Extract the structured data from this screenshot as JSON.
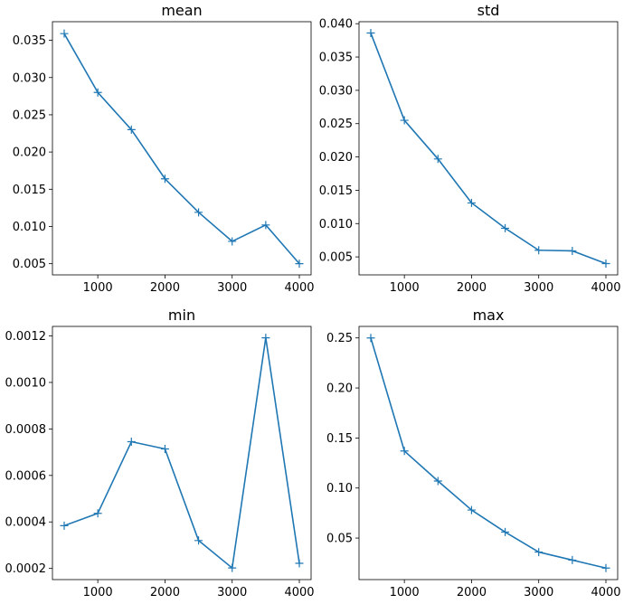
{
  "chart_data": [
    {
      "type": "line",
      "title": "mean",
      "xlabel": "",
      "ylabel": "",
      "marker": "+",
      "color": "#1f77b4",
      "x": [
        500,
        1000,
        1500,
        2000,
        2500,
        3000,
        3500,
        4000
      ],
      "y": [
        0.0359,
        0.028,
        0.023,
        0.0164,
        0.0119,
        0.008,
        0.0102,
        0.005
      ],
      "xlim": [
        325,
        4175
      ],
      "ylim": [
        0.0035,
        0.0375
      ],
      "xticks": [
        1000,
        2000,
        3000,
        4000
      ],
      "xtick_labels": [
        "1000",
        "2000",
        "3000",
        "4000"
      ],
      "yticks": [
        0.005,
        0.01,
        0.015,
        0.02,
        0.025,
        0.03,
        0.035
      ],
      "ytick_labels": [
        "0.005",
        "0.010",
        "0.015",
        "0.020",
        "0.025",
        "0.030",
        "0.035"
      ]
    },
    {
      "type": "line",
      "title": "std",
      "xlabel": "",
      "ylabel": "",
      "marker": "+",
      "color": "#1f77b4",
      "x": [
        500,
        1000,
        1500,
        2000,
        2500,
        3000,
        3500,
        4000
      ],
      "y": [
        0.0386,
        0.0255,
        0.0197,
        0.0131,
        0.0093,
        0.006,
        0.0059,
        0.004
      ],
      "xlim": [
        325,
        4175
      ],
      "ylim": [
        0.0023,
        0.0403
      ],
      "xticks": [
        1000,
        2000,
        3000,
        4000
      ],
      "xtick_labels": [
        "1000",
        "2000",
        "3000",
        "4000"
      ],
      "yticks": [
        0.005,
        0.01,
        0.015,
        0.02,
        0.025,
        0.03,
        0.035,
        0.04
      ],
      "ytick_labels": [
        "0.005",
        "0.010",
        "0.015",
        "0.020",
        "0.025",
        "0.030",
        "0.035",
        "0.040"
      ]
    },
    {
      "type": "line",
      "title": "min",
      "xlabel": "",
      "ylabel": "",
      "marker": "+",
      "color": "#1f77b4",
      "x": [
        500,
        1000,
        1500,
        2000,
        2500,
        3000,
        3500,
        4000
      ],
      "y": [
        0.000384,
        0.000437,
        0.000745,
        0.000714,
        0.00032,
        0.000202,
        0.001192,
        0.000222
      ],
      "xlim": [
        325,
        4175
      ],
      "ylim": [
        0.000152,
        0.001241
      ],
      "xticks": [
        1000,
        2000,
        3000,
        4000
      ],
      "xtick_labels": [
        "1000",
        "2000",
        "3000",
        "4000"
      ],
      "yticks": [
        0.0002,
        0.0004,
        0.0006,
        0.0008,
        0.001,
        0.0012
      ],
      "ytick_labels": [
        "0.0002",
        "0.0004",
        "0.0006",
        "0.0008",
        "0.0010",
        "0.0012"
      ]
    },
    {
      "type": "line",
      "title": "max",
      "xlabel": "",
      "ylabel": "",
      "marker": "+",
      "color": "#1f77b4",
      "x": [
        500,
        1000,
        1500,
        2000,
        2500,
        3000,
        3500,
        4000
      ],
      "y": [
        0.25,
        0.137,
        0.107,
        0.078,
        0.056,
        0.036,
        0.028,
        0.02
      ],
      "xlim": [
        325,
        4175
      ],
      "ylim": [
        0.0085,
        0.2615
      ],
      "xticks": [
        1000,
        2000,
        3000,
        4000
      ],
      "xtick_labels": [
        "1000",
        "2000",
        "3000",
        "4000"
      ],
      "yticks": [
        0.05,
        0.1,
        0.15,
        0.2,
        0.25
      ],
      "ytick_labels": [
        "0.05",
        "0.10",
        "0.15",
        "0.20",
        "0.25"
      ]
    }
  ]
}
